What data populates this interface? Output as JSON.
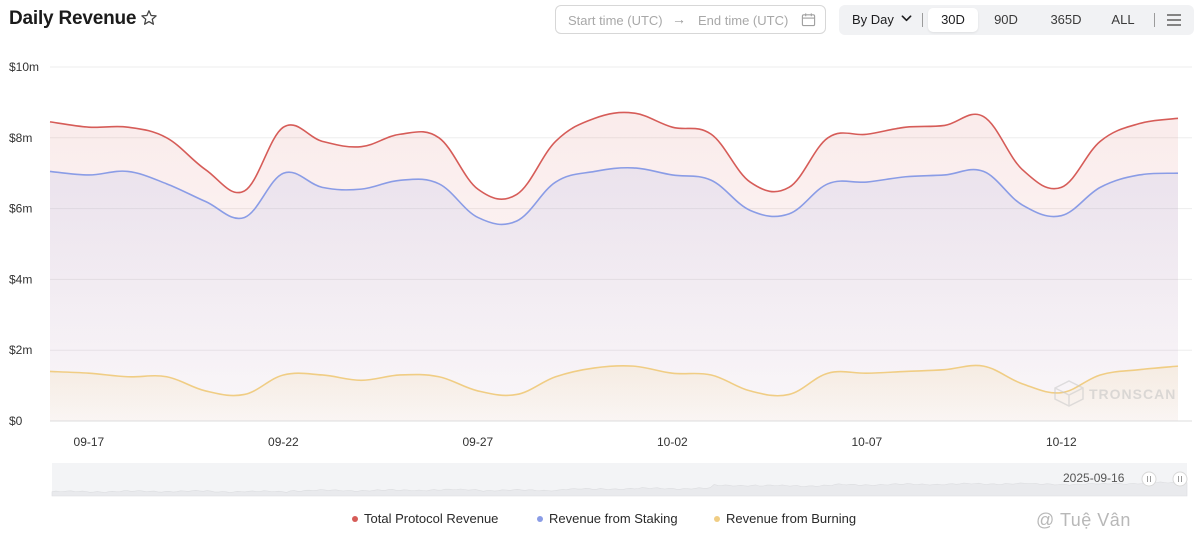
{
  "header": {
    "title": "Daily Revenue",
    "start_placeholder": "Start time (UTC)",
    "arrow": "→",
    "end_placeholder": "End time (UTC)",
    "granularity": "By Day",
    "ranges": [
      "30D",
      "90D",
      "365D",
      "ALL"
    ],
    "active_range": "30D"
  },
  "colors": {
    "total": "#d65c58",
    "staking": "#8a9ce6",
    "burning": "#f0cd84"
  },
  "chart_data": {
    "type": "line",
    "title": "Daily Revenue",
    "x": [
      "09-16",
      "09-17",
      "09-18",
      "09-19",
      "09-20",
      "09-21",
      "09-22",
      "09-23",
      "09-24",
      "09-25",
      "09-26",
      "09-27",
      "09-28",
      "09-29",
      "09-30",
      "10-01",
      "10-02",
      "10-03",
      "10-04",
      "10-05",
      "10-06",
      "10-07",
      "10-08",
      "10-09",
      "10-10",
      "10-11",
      "10-12",
      "10-13",
      "10-14",
      "10-15"
    ],
    "x_tick_labels": [
      "09-17",
      "09-22",
      "09-27",
      "10-02",
      "10-07",
      "10-12"
    ],
    "y_tick_labels": [
      "$0",
      "$2m",
      "$4m",
      "$6m",
      "$8m",
      "$10m"
    ],
    "ylim": [
      0,
      10
    ],
    "y_unit": "$m",
    "series": [
      {
        "name": "Total Protocol Revenue",
        "values": [
          8.45,
          8.3,
          8.3,
          8.0,
          7.1,
          6.5,
          8.3,
          7.9,
          7.75,
          8.1,
          8.0,
          6.55,
          6.4,
          7.9,
          8.55,
          8.7,
          8.3,
          8.1,
          6.75,
          6.6,
          8.0,
          8.1,
          8.3,
          8.35,
          8.6,
          7.1,
          6.6,
          7.9,
          8.4,
          8.55
        ]
      },
      {
        "name": "Revenue from Staking",
        "values": [
          7.05,
          6.95,
          7.05,
          6.7,
          6.2,
          5.75,
          7.0,
          6.6,
          6.55,
          6.8,
          6.7,
          5.75,
          5.65,
          6.75,
          7.05,
          7.15,
          6.95,
          6.8,
          5.95,
          5.85,
          6.7,
          6.75,
          6.9,
          6.95,
          7.05,
          6.1,
          5.8,
          6.6,
          6.95,
          7.0
        ]
      },
      {
        "name": "Revenue from Burning",
        "values": [
          1.4,
          1.35,
          1.25,
          1.25,
          0.85,
          0.75,
          1.3,
          1.3,
          1.15,
          1.3,
          1.25,
          0.85,
          0.75,
          1.25,
          1.5,
          1.55,
          1.35,
          1.3,
          0.85,
          0.75,
          1.35,
          1.35,
          1.4,
          1.45,
          1.55,
          1.05,
          0.8,
          1.3,
          1.45,
          1.55
        ]
      }
    ],
    "grid": "horizontal",
    "legend_position": "bottom"
  },
  "navigator": {
    "date_label": "2025-09-16"
  },
  "watermark": {
    "brand": "TRONSCAN",
    "credit": "@ Tuệ Vân"
  }
}
